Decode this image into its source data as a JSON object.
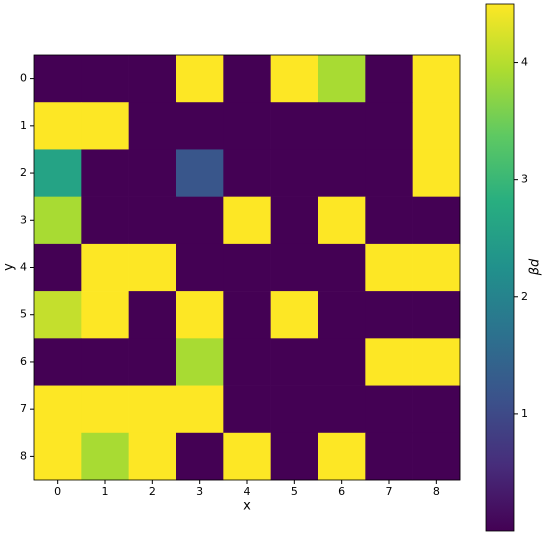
{
  "chart_data": {
    "type": "heatmap",
    "x_label": "x",
    "y_label": "y",
    "colorbar_label": "βd",
    "colormap": "viridis",
    "clim": [
      0,
      4.5
    ],
    "colorbar_ticks": [
      1,
      2,
      3,
      4
    ],
    "xlim": [
      -0.5,
      8.5
    ],
    "ylim": [
      8.5,
      -0.5
    ],
    "xticks": [
      0,
      1,
      2,
      3,
      4,
      5,
      6,
      7,
      8
    ],
    "yticks": [
      0,
      1,
      2,
      3,
      4,
      5,
      6,
      7,
      8
    ],
    "z": [
      [
        0,
        0,
        0,
        4.5,
        0,
        4.5,
        3.9,
        0,
        4.5
      ],
      [
        4.5,
        4.5,
        0,
        0,
        0,
        0,
        0,
        0,
        4.5
      ],
      [
        2.6,
        0,
        0,
        1.2,
        0,
        0,
        0,
        0,
        4.5
      ],
      [
        3.9,
        0,
        0,
        0,
        4.5,
        0,
        4.5,
        0,
        0
      ],
      [
        0,
        4.5,
        4.5,
        0,
        0,
        0,
        0,
        4.5,
        4.5
      ],
      [
        4.1,
        4.5,
        0,
        4.5,
        0,
        4.5,
        0,
        0,
        0
      ],
      [
        0,
        0,
        0,
        3.9,
        0,
        0,
        0,
        4.5,
        4.5
      ],
      [
        4.5,
        4.5,
        4.5,
        4.5,
        0,
        0,
        0,
        0,
        0
      ],
      [
        4.5,
        3.9,
        4.5,
        0,
        4.5,
        0,
        4.5,
        0,
        0
      ]
    ]
  }
}
